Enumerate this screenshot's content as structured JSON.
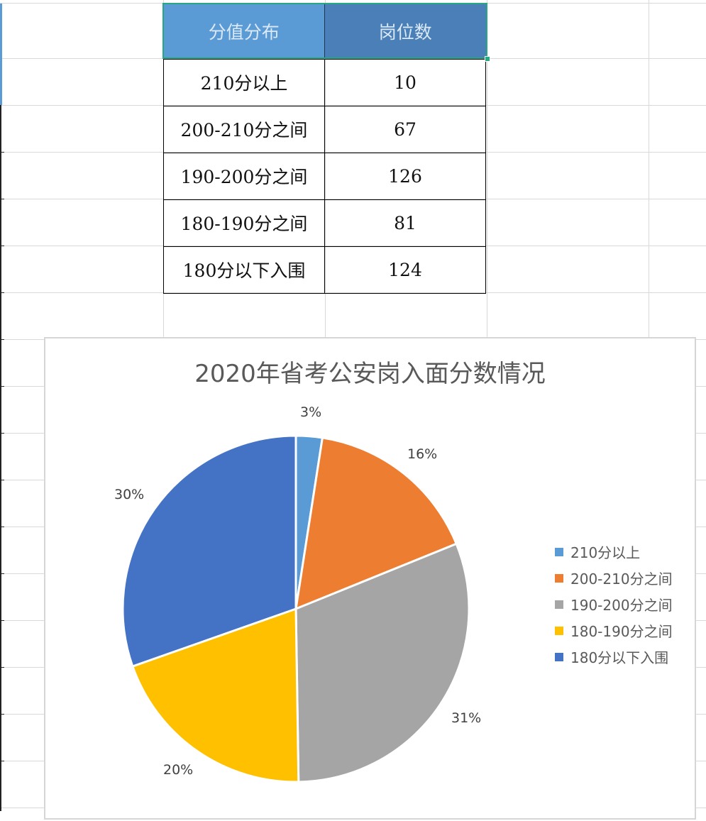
{
  "table": {
    "headers": [
      "分值分布",
      "岗位数"
    ],
    "rows": [
      [
        "210分以上",
        "10"
      ],
      [
        "200-210分之间",
        "67"
      ],
      [
        "190-200分之间",
        "126"
      ],
      [
        "180-190分之间",
        "81"
      ],
      [
        "180分以下入围",
        "124"
      ]
    ]
  },
  "chart": {
    "title": "2020年省考公安岗入面分数情况",
    "labels": [
      "3%",
      "16%",
      "31%",
      "20%",
      "30%"
    ],
    "legend": [
      "210分以上",
      "200-210分之间",
      "190-200分之间",
      "180-190分之间",
      "180分以下入围"
    ],
    "colors": [
      "#5b9bd5",
      "#ed7d31",
      "#a5a5a5",
      "#ffc000",
      "#4472c4"
    ]
  },
  "chart_data": {
    "type": "pie",
    "title": "2020年省考公安岗入面分数情况",
    "categories": [
      "210分以上",
      "200-210分之间",
      "190-200分之间",
      "180-190分之间",
      "180分以下入围"
    ],
    "values": [
      10,
      67,
      126,
      81,
      124
    ],
    "percent_labels": [
      "3%",
      "16%",
      "31%",
      "20%",
      "30%"
    ],
    "colors": [
      "#5b9bd5",
      "#ed7d31",
      "#a5a5a5",
      "#ffc000",
      "#4472c4"
    ],
    "legend_position": "right",
    "xlabel": "",
    "ylabel": ""
  }
}
